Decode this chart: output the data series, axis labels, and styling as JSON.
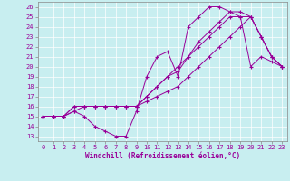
{
  "xlabel": "Windchill (Refroidissement éolien,°C)",
  "bg_color": "#c8eef0",
  "line_color": "#990099",
  "grid_color": "#ffffff",
  "xlim": [
    -0.5,
    23.5
  ],
  "ylim": [
    12.5,
    26.5
  ],
  "xticks": [
    0,
    1,
    2,
    3,
    4,
    5,
    6,
    7,
    8,
    9,
    10,
    11,
    12,
    13,
    14,
    15,
    16,
    17,
    18,
    19,
    20,
    21,
    22,
    23
  ],
  "yticks": [
    13,
    14,
    15,
    16,
    17,
    18,
    19,
    20,
    21,
    22,
    23,
    24,
    25,
    26
  ],
  "lines": [
    {
      "x": [
        0,
        1,
        2,
        3,
        4,
        5,
        6,
        7,
        8,
        9,
        10,
        11,
        12,
        13,
        14,
        15,
        16,
        17,
        18,
        19,
        20,
        21,
        22,
        23
      ],
      "y": [
        15,
        15,
        15,
        15.5,
        15,
        14,
        13.5,
        13,
        13,
        15.5,
        19,
        21,
        21.5,
        19,
        24,
        25,
        26,
        26,
        25.5,
        25,
        20,
        21,
        20.5,
        20
      ]
    },
    {
      "x": [
        0,
        1,
        2,
        3,
        4,
        5,
        6,
        7,
        8,
        9,
        10,
        11,
        12,
        13,
        14,
        15,
        16,
        17,
        18,
        19,
        20,
        21,
        22,
        23
      ],
      "y": [
        15,
        15,
        15,
        15.5,
        16,
        16,
        16,
        16,
        16,
        16,
        17,
        18,
        19,
        19.5,
        21,
        22.5,
        23.5,
        24.5,
        25.5,
        25.5,
        25,
        23,
        21,
        20
      ]
    },
    {
      "x": [
        0,
        1,
        2,
        3,
        4,
        5,
        6,
        7,
        8,
        9,
        10,
        11,
        12,
        13,
        14,
        15,
        16,
        17,
        18,
        19,
        20,
        21,
        22,
        23
      ],
      "y": [
        15,
        15,
        15,
        16,
        16,
        16,
        16,
        16,
        16,
        16,
        17,
        18,
        19,
        20,
        21,
        22,
        23,
        24,
        25,
        25,
        25,
        23,
        21,
        20
      ]
    },
    {
      "x": [
        0,
        1,
        2,
        3,
        4,
        5,
        6,
        7,
        8,
        9,
        10,
        11,
        12,
        13,
        14,
        15,
        16,
        17,
        18,
        19,
        20,
        21,
        22,
        23
      ],
      "y": [
        15,
        15,
        15,
        16,
        16,
        16,
        16,
        16,
        16,
        16,
        16.5,
        17,
        17.5,
        18,
        19,
        20,
        21,
        22,
        23,
        24,
        25,
        23,
        21,
        20
      ]
    }
  ],
  "tick_fontsize": 5,
  "label_fontsize": 5.5,
  "xlabel_fontsize": 5.5,
  "linewidth": 0.7,
  "markersize": 3
}
